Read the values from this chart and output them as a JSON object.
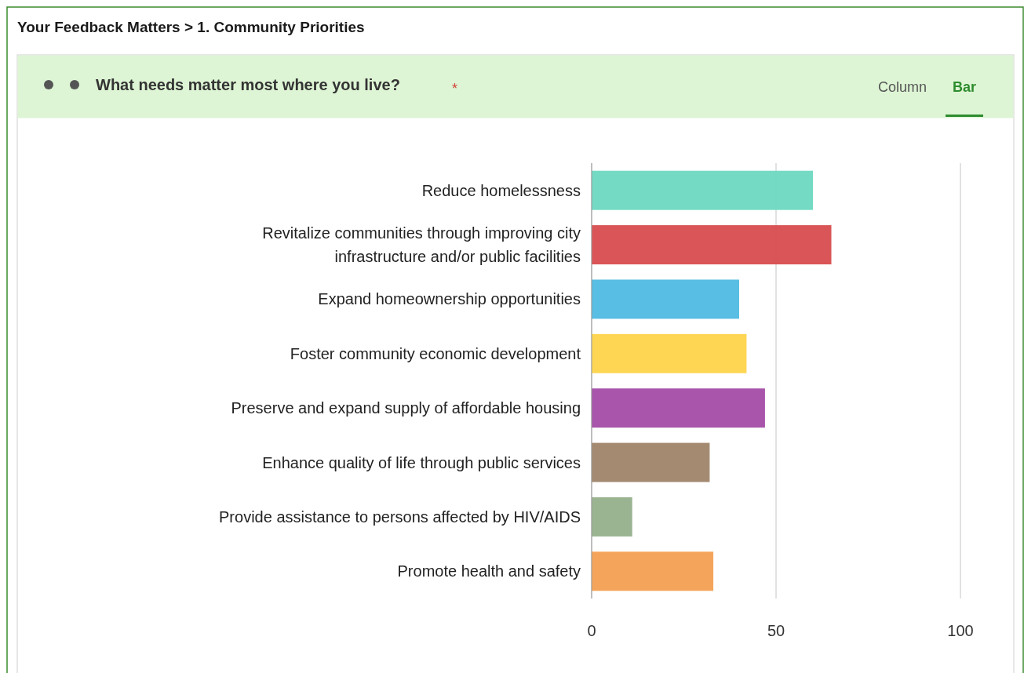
{
  "chart_data": {
    "type": "bar",
    "orientation": "horizontal",
    "title": "Your Feedback Matters > 1. Community Priorities",
    "subtitle": "What needs matter most where you live?",
    "annotations": [
      "*",
      "Column",
      "Bar"
    ],
    "categories": [
      "Reduce homelessness",
      "Revitalize communities through improving city infrastructure and/or public facilities",
      "Expand homeownership opportunities",
      "Foster community economic development",
      "Preserve and expand supply of affordable housing",
      "Enhance quality of life through public services",
      "Provide assistance to persons affected by HIV/AIDS",
      "Promote health and safety"
    ],
    "values": [
      60,
      65,
      40,
      42,
      47,
      32,
      11,
      33
    ],
    "colors": [
      "#6dd8c0",
      "#d84c4e",
      "#4fbae1",
      "#fed44b",
      "#a34ca6",
      "#a0846a",
      "#95b08b",
      "#f4a052"
    ],
    "xlim": [
      0,
      100
    ],
    "xticks": [
      0,
      50,
      100
    ],
    "grid": "x"
  }
}
